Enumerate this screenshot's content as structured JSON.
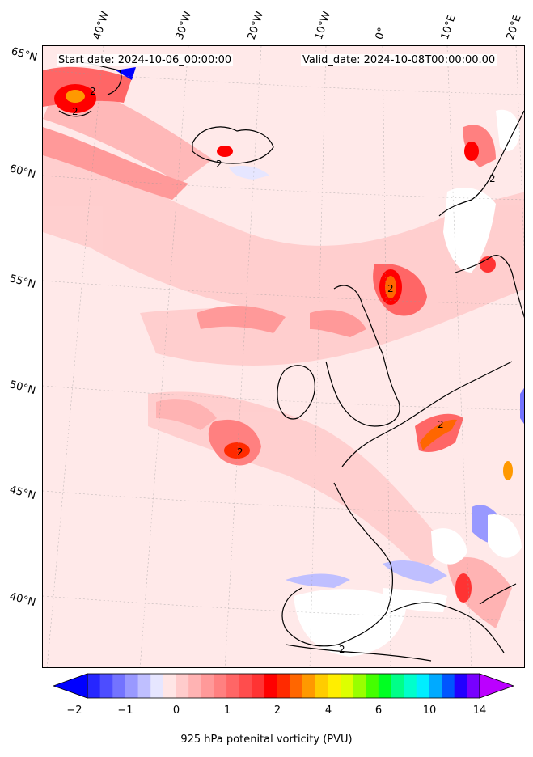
{
  "header": {
    "start_date": "Start date: 2024-10-06_00:00:00",
    "valid_date": "Valid_date: 2024-10-08T00:00:00.00"
  },
  "longitude_labels": [
    "40°W",
    "30°W",
    "20°W",
    "10°W",
    "0°",
    "10°E",
    "20°E"
  ],
  "latitude_labels": [
    "65°N",
    "60°N",
    "55°N",
    "50°N",
    "45°N",
    "40°N"
  ],
  "colorbar": {
    "title": "925 hPa potenital vorticity (PVU)",
    "tick_labels": [
      "−2",
      "−1",
      "0",
      "1",
      "2",
      "4",
      "6",
      "10",
      "14"
    ],
    "colors": [
      "#0000ff",
      "#2626ff",
      "#4d4dff",
      "#7373ff",
      "#9999ff",
      "#bfbfff",
      "#e6e6ff",
      "#ffe6e6",
      "#ffcccc",
      "#ffb3b3",
      "#ff9999",
      "#ff8080",
      "#ff6666",
      "#ff4d4d",
      "#ff3333",
      "#ff0000",
      "#ff2a00",
      "#ff6600",
      "#ff9900",
      "#ffcc00",
      "#ffee00",
      "#ddff00",
      "#99ff00",
      "#44ff00",
      "#00ff22",
      "#00ff88",
      "#00ffcc",
      "#00eeff",
      "#00aaff",
      "#0055ff",
      "#2200ff",
      "#7700ff",
      "#bb00ff"
    ]
  },
  "contour_labels": [
    "2",
    "2",
    "2",
    "2",
    "2",
    "2",
    "2",
    "2"
  ]
}
